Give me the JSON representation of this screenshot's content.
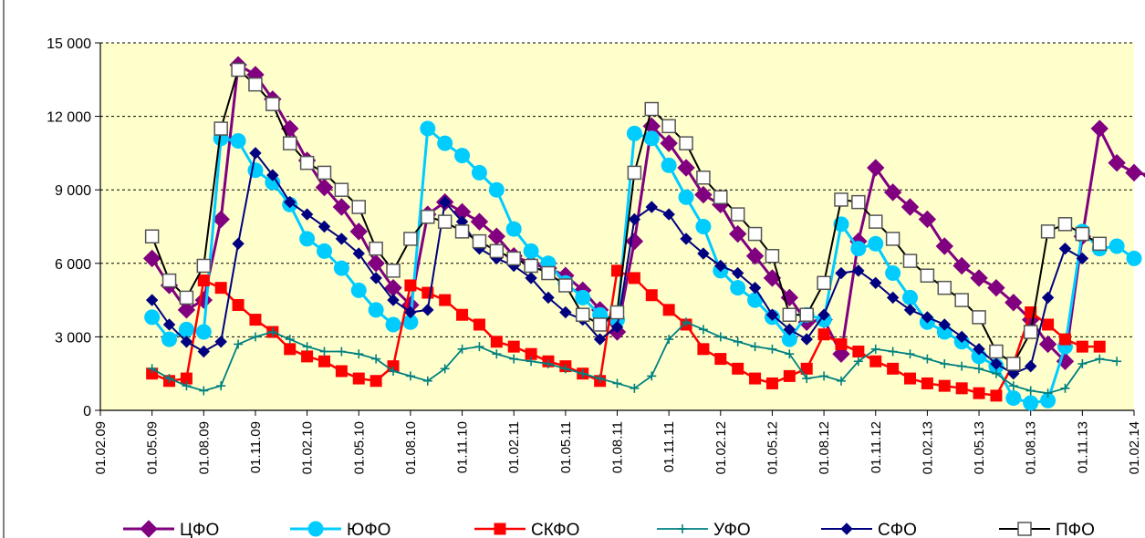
{
  "chart_data": {
    "type": "line",
    "title": "",
    "xlabel": "",
    "ylabel": "",
    "ylim": [
      0,
      15000
    ],
    "yticks": [
      "0",
      "3 000",
      "6 000",
      "9 000",
      "12 000",
      "15 000"
    ],
    "ytick_values": [
      0,
      3000,
      6000,
      9000,
      12000,
      15000
    ],
    "x_tick_labels": [
      "01.02.09",
      "01.05.09",
      "01.08.09",
      "01.11.09",
      "01.02.10",
      "01.05.10",
      "01.08.10",
      "01.11.10",
      "01.02.11",
      "01.05.11",
      "01.08.11",
      "01.11.11",
      "01.02.12",
      "01.05.12",
      "01.08.12",
      "01.11.12",
      "01.02.13",
      "01.05.13",
      "01.08.13",
      "01.11.13",
      "01.02.14"
    ],
    "x_start_month_index": 0,
    "x_month_indices": [
      3,
      4,
      5,
      6,
      7,
      8,
      9,
      10,
      11,
      12,
      13,
      14,
      15,
      16,
      17,
      18,
      19,
      20,
      21,
      22,
      23,
      24,
      25,
      26,
      27,
      28,
      29,
      30,
      31,
      32,
      33,
      34,
      35,
      36,
      37,
      38,
      39,
      40,
      41,
      42,
      43,
      44,
      45,
      46,
      47,
      48,
      49,
      50,
      51,
      52,
      53,
      54,
      55,
      56,
      57,
      58
    ],
    "grid": true,
    "plot_background": "#ffffcc",
    "legend_position": "bottom",
    "series": [
      {
        "name": "ЦФО",
        "color": "#800080",
        "marker": "diamond",
        "values": [
          6200,
          5100,
          4100,
          4500,
          7800,
          14100,
          13700,
          12700,
          11500,
          10200,
          9100,
          8300,
          7300,
          6000,
          5000,
          4300,
          8000,
          8500,
          8100,
          7700,
          7100,
          6300,
          6000,
          5800,
          5500,
          4900,
          4100,
          3200,
          6900,
          11600,
          10900,
          9900,
          8800,
          8400,
          7200,
          6300,
          5400,
          4600,
          3600,
          3700,
          2300,
          6900,
          9900,
          8900,
          8300,
          7800,
          6700,
          5900,
          5400,
          5000,
          4400,
          3700,
          2700,
          2000,
          7100,
          11500,
          10100,
          9700,
          9600
        ]
      },
      {
        "name": "ЮФО",
        "color": "#00ccff",
        "marker": "circle",
        "values": [
          3800,
          2900,
          3300,
          3200,
          11100,
          11000,
          9800,
          9300,
          8400,
          7000,
          6500,
          5800,
          4900,
          4100,
          3500,
          3600,
          11500,
          10900,
          10400,
          9700,
          9000,
          7400,
          6500,
          6000,
          5200,
          4600,
          3900,
          3700,
          11300,
          11100,
          10000,
          8700,
          7500,
          5700,
          5000,
          4500,
          3800,
          2900,
          3900,
          3700,
          7600,
          6600,
          6800,
          5600,
          4600,
          3600,
          3200,
          2800,
          2200,
          1800,
          500,
          300,
          400,
          2600,
          7300,
          6600,
          6700,
          6200
        ]
      },
      {
        "name": "СКФО",
        "color": "#ff0000",
        "marker": "square",
        "values": [
          1500,
          1200,
          1300,
          5300,
          5000,
          4300,
          3700,
          3200,
          2500,
          2200,
          2000,
          1600,
          1300,
          1200,
          1800,
          5100,
          4800,
          4500,
          3900,
          3500,
          2800,
          2600,
          2300,
          2000,
          1800,
          1500,
          1200,
          5700,
          5400,
          4700,
          4100,
          3500,
          2500,
          2100,
          1700,
          1300,
          1100,
          1400,
          1700,
          3100,
          2700,
          2400,
          2000,
          1700,
          1300,
          1100,
          1000,
          900,
          700,
          600,
          1900,
          4000,
          3500,
          2900,
          2600,
          2600
        ]
      },
      {
        "name": "УФО",
        "color": "#008080",
        "marker": "plus",
        "values": [
          1700,
          1300,
          1000,
          800,
          1000,
          2700,
          3000,
          3200,
          2900,
          2600,
          2400,
          2400,
          2300,
          2100,
          1600,
          1400,
          1200,
          1700,
          2500,
          2600,
          2300,
          2100,
          2000,
          1900,
          1700,
          1500,
          1300,
          1100,
          900,
          1400,
          2900,
          3600,
          3300,
          3000,
          2800,
          2600,
          2500,
          2300,
          1300,
          1400,
          1200,
          2000,
          2500,
          2400,
          2300,
          2100,
          1900,
          1800,
          1700,
          1500,
          1000,
          800,
          700,
          900,
          1900,
          2100,
          2000
        ]
      },
      {
        "name": "СФО",
        "color": "#000080",
        "marker": "diamond-small",
        "values": [
          4500,
          3500,
          2800,
          2400,
          2800,
          6800,
          10500,
          9600,
          8500,
          8000,
          7500,
          7000,
          6400,
          5400,
          4500,
          4000,
          4100,
          8500,
          7700,
          6600,
          6200,
          5900,
          5400,
          4600,
          4000,
          3700,
          2900,
          3400,
          7800,
          8300,
          8000,
          7000,
          6400,
          5900,
          5600,
          5000,
          3900,
          3300,
          2900,
          3900,
          5600,
          5700,
          5200,
          4600,
          4100,
          3800,
          3500,
          3000,
          2500,
          1900,
          1500,
          1800,
          4600,
          6600,
          6200
        ]
      },
      {
        "name": "ПФО",
        "color": "#000000",
        "marker": "square-open",
        "values": [
          7100,
          5300,
          4600,
          5900,
          11500,
          13900,
          13300,
          12500,
          10900,
          10100,
          9700,
          9000,
          8300,
          6600,
          5700,
          7000,
          7900,
          7700,
          7300,
          6900,
          6500,
          6200,
          5900,
          5600,
          5100,
          3900,
          3500,
          4000,
          9700,
          12300,
          11600,
          10900,
          9500,
          8700,
          8000,
          7200,
          6300,
          3900,
          3900,
          5200,
          8600,
          8500,
          7700,
          7000,
          6100,
          5500,
          5000,
          4500,
          3800,
          2400,
          1900,
          3200,
          7300,
          7600,
          7200,
          6800
        ]
      }
    ]
  }
}
